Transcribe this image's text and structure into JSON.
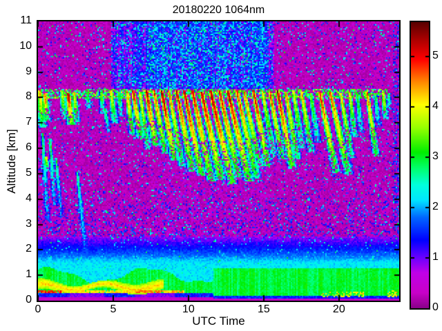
{
  "figure": {
    "title": "20180220 1064nm",
    "xlabel": "UTC Time",
    "ylabel": "Altitude [km]"
  },
  "chart_data": {
    "type": "heatmap",
    "title": "20180220 1064nm",
    "xlabel": "UTC Time",
    "ylabel": "Altitude [km]",
    "x_range": [
      0,
      24
    ],
    "y_range": [
      0,
      11
    ],
    "x_ticks": [
      0,
      5,
      10,
      15,
      20
    ],
    "y_ticks": [
      0,
      1,
      2,
      3,
      4,
      5,
      6,
      7,
      8,
      9,
      10,
      11
    ],
    "grid": false,
    "legend": "colorbar-right",
    "seed": 20180220,
    "colorbar": {
      "range": [
        0,
        5.69
      ],
      "ticks": [
        0,
        1,
        2,
        3,
        4,
        5
      ],
      "colormap": [
        [
          0.0,
          "#8A008A"
        ],
        [
          0.3,
          "#C800C8"
        ],
        [
          0.7,
          "#C000E8"
        ],
        [
          1.0,
          "#6A00FF"
        ],
        [
          1.35,
          "#0000FF"
        ],
        [
          1.8,
          "#0066FF"
        ],
        [
          2.15,
          "#00E6FF"
        ],
        [
          2.45,
          "#00FFDD"
        ],
        [
          2.8,
          "#00FF66"
        ],
        [
          3.1,
          "#00EE00"
        ],
        [
          3.6,
          "#99FF00"
        ],
        [
          4.05,
          "#FFFF00"
        ],
        [
          4.5,
          "#FF8800"
        ],
        [
          4.95,
          "#FF0000"
        ],
        [
          5.35,
          "#AA0000"
        ],
        [
          5.69,
          "#5A0000"
        ]
      ]
    },
    "background": {
      "base": [
        0.1,
        0.34
      ],
      "speckle_blue": 0.065,
      "speckle_cyan": 0.035,
      "speckle_green": 0.012
    },
    "band": {
      "comment": "daytime solar background noise band above cloud deck",
      "t": [
        4.82,
        15.72
      ],
      "core_t": [
        7.25,
        15.1
      ],
      "alt_min": 8.33
    },
    "cirrus": {
      "band_alt": [
        7.98,
        8.32
      ],
      "t_max": 23.35,
      "streaks": [
        [
          0.1,
          8.3,
          1.5,
          0.15,
          0.16,
          4.6
        ],
        [
          0.45,
          8.2,
          1.1,
          0.12,
          0.14,
          5.0
        ],
        [
          0.3,
          6.6,
          3.5,
          0.1,
          0.1,
          3.0
        ],
        [
          0.8,
          6.4,
          2.7,
          0.12,
          0.09,
          3.2
        ],
        [
          0.55,
          5.7,
          0.6,
          0.1,
          0.09,
          4.4
        ],
        [
          1.2,
          5.6,
          2.3,
          0.15,
          0.09,
          2.9
        ],
        [
          1.6,
          8.25,
          1.1,
          0.15,
          0.13,
          4.1
        ],
        [
          2.0,
          8.2,
          1.3,
          0.18,
          0.15,
          5.5
        ],
        [
          2.4,
          8.25,
          1.2,
          0.15,
          0.12,
          4.5
        ],
        [
          2.6,
          5.1,
          3.2,
          0.18,
          0.1,
          2.8
        ],
        [
          3.3,
          8.15,
          0.6,
          0.12,
          0.1,
          3.4
        ],
        [
          4.2,
          8.25,
          0.9,
          0.15,
          0.12,
          3.7
        ],
        [
          4.45,
          7.6,
          1.0,
          0.25,
          0.1,
          3.2
        ],
        [
          4.85,
          8.28,
          1.3,
          0.2,
          0.13,
          4.3
        ],
        [
          5.35,
          8.25,
          1.0,
          0.18,
          0.12,
          3.6
        ],
        [
          5.9,
          8.3,
          1.8,
          0.22,
          0.12,
          4.8
        ],
        [
          6.3,
          8.3,
          1.9,
          0.28,
          0.13,
          5.3
        ],
        [
          6.75,
          8.25,
          2.3,
          0.25,
          0.12,
          4.4
        ],
        [
          7.2,
          8.3,
          2.2,
          0.28,
          0.14,
          5.5
        ],
        [
          7.7,
          8.3,
          2.5,
          0.3,
          0.13,
          5.0
        ],
        [
          8.2,
          8.3,
          2.8,
          0.32,
          0.14,
          5.6
        ],
        [
          8.7,
          8.28,
          3.0,
          0.3,
          0.13,
          4.7
        ],
        [
          9.2,
          8.3,
          3.2,
          0.33,
          0.14,
          5.3
        ],
        [
          9.7,
          8.3,
          3.4,
          0.35,
          0.14,
          5.6
        ],
        [
          10.25,
          8.3,
          3.6,
          0.36,
          0.15,
          5.3
        ],
        [
          10.85,
          8.25,
          3.5,
          0.38,
          0.16,
          5.5
        ],
        [
          11.45,
          8.3,
          3.7,
          0.4,
          0.16,
          5.6
        ],
        [
          12.05,
          8.28,
          3.4,
          0.38,
          0.15,
          5.2
        ],
        [
          12.6,
          8.3,
          3.6,
          0.4,
          0.16,
          5.5
        ],
        [
          13.2,
          8.3,
          3.5,
          0.38,
          0.15,
          5.0
        ],
        [
          13.7,
          8.25,
          3.1,
          0.35,
          0.14,
          4.7
        ],
        [
          14.3,
          8.3,
          3.0,
          0.33,
          0.14,
          5.3
        ],
        [
          14.9,
          8.3,
          2.6,
          0.3,
          0.13,
          4.3
        ],
        [
          15.4,
          8.25,
          2.7,
          0.32,
          0.13,
          5.0
        ],
        [
          15.9,
          8.3,
          3.1,
          0.33,
          0.14,
          5.5
        ],
        [
          16.45,
          8.25,
          2.7,
          0.3,
          0.13,
          4.8
        ],
        [
          16.95,
          8.3,
          2.3,
          0.28,
          0.13,
          4.1
        ],
        [
          17.5,
          8.25,
          2.4,
          0.28,
          0.13,
          4.6
        ],
        [
          18.1,
          8.2,
          2.0,
          0.25,
          0.12,
          3.7
        ],
        [
          18.7,
          8.25,
          3.2,
          0.35,
          0.14,
          5.2
        ],
        [
          19.4,
          8.25,
          3.3,
          0.38,
          0.15,
          5.0
        ],
        [
          20.1,
          8.2,
          2.6,
          0.3,
          0.12,
          4.5
        ],
        [
          20.7,
          8.25,
          1.8,
          0.2,
          0.11,
          4.3
        ],
        [
          21.2,
          8.2,
          1.6,
          0.18,
          0.11,
          3.5
        ],
        [
          21.85,
          8.25,
          2.6,
          0.25,
          0.12,
          4.9
        ],
        [
          22.4,
          8.2,
          1.4,
          0.18,
          0.11,
          3.2
        ],
        [
          22.95,
          8.15,
          1.0,
          0.15,
          0.11,
          4.4
        ],
        [
          23.3,
          8.2,
          0.7,
          0.12,
          0.1,
          3.2
        ]
      ]
    },
    "pbl": {
      "comment": "planetary boundary layer near surface",
      "top_km": 2.55,
      "green_top_right": 1.27,
      "right_start_t": 11.7,
      "yellow_wave_t_max": 8.35,
      "yellow_wave_center": 0.55,
      "orange_line_alt": 0.34,
      "red_spot_t": [
        0.0,
        1.55
      ],
      "orange_spot_t": [
        6.4,
        8.25
      ],
      "orange_spot2_t": [
        8.9,
        9.65
      ],
      "right_yellow_t": [
        18.85,
        21.65
      ],
      "right_yellow2_t": [
        23.2,
        23.85
      ],
      "dark_strip_t": [
        [
          2.1,
          4.4
        ],
        [
          6.4,
          9.1
        ]
      ]
    }
  }
}
